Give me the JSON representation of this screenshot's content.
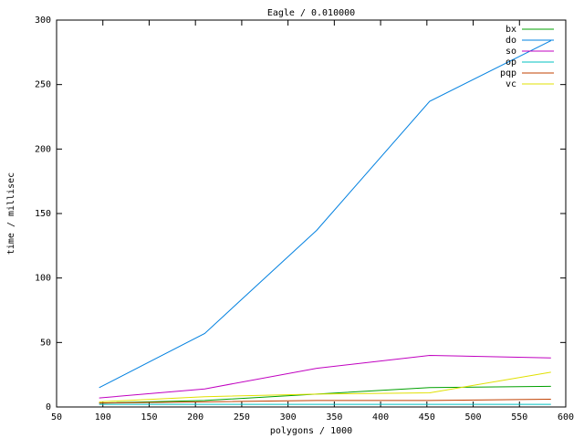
{
  "chart_data": {
    "type": "line",
    "title": "Eagle / 0.010000",
    "x_label": "polygons / 1000",
    "y_label": "time / millisec",
    "xlim": [
      50,
      600
    ],
    "xticks": [
      50,
      100,
      150,
      200,
      250,
      300,
      350,
      400,
      450,
      500,
      550,
      600
    ],
    "ylim": [
      0,
      300
    ],
    "yticks": [
      0,
      50,
      100,
      150,
      200,
      250,
      300
    ],
    "legend": "top-right",
    "x": [
      96,
      210,
      331,
      453,
      584
    ],
    "series": [
      {
        "name": "bx",
        "color": "#00a000",
        "values": [
          3,
          5,
          10,
          15,
          16
        ]
      },
      {
        "name": "do",
        "color": "#0080e0",
        "values": [
          15,
          57,
          137,
          237,
          284
        ]
      },
      {
        "name": "so",
        "color": "#c000c0",
        "values": [
          7,
          14,
          30,
          40,
          38
        ]
      },
      {
        "name": "op",
        "color": "#00c0c0",
        "values": [
          2,
          2,
          2,
          2,
          2
        ]
      },
      {
        "name": "pqp",
        "color": "#c04000",
        "values": [
          3,
          4,
          5,
          5,
          6
        ]
      },
      {
        "name": "vc",
        "color": "#e0e000",
        "values": [
          4,
          8,
          10,
          11,
          27
        ]
      }
    ]
  }
}
